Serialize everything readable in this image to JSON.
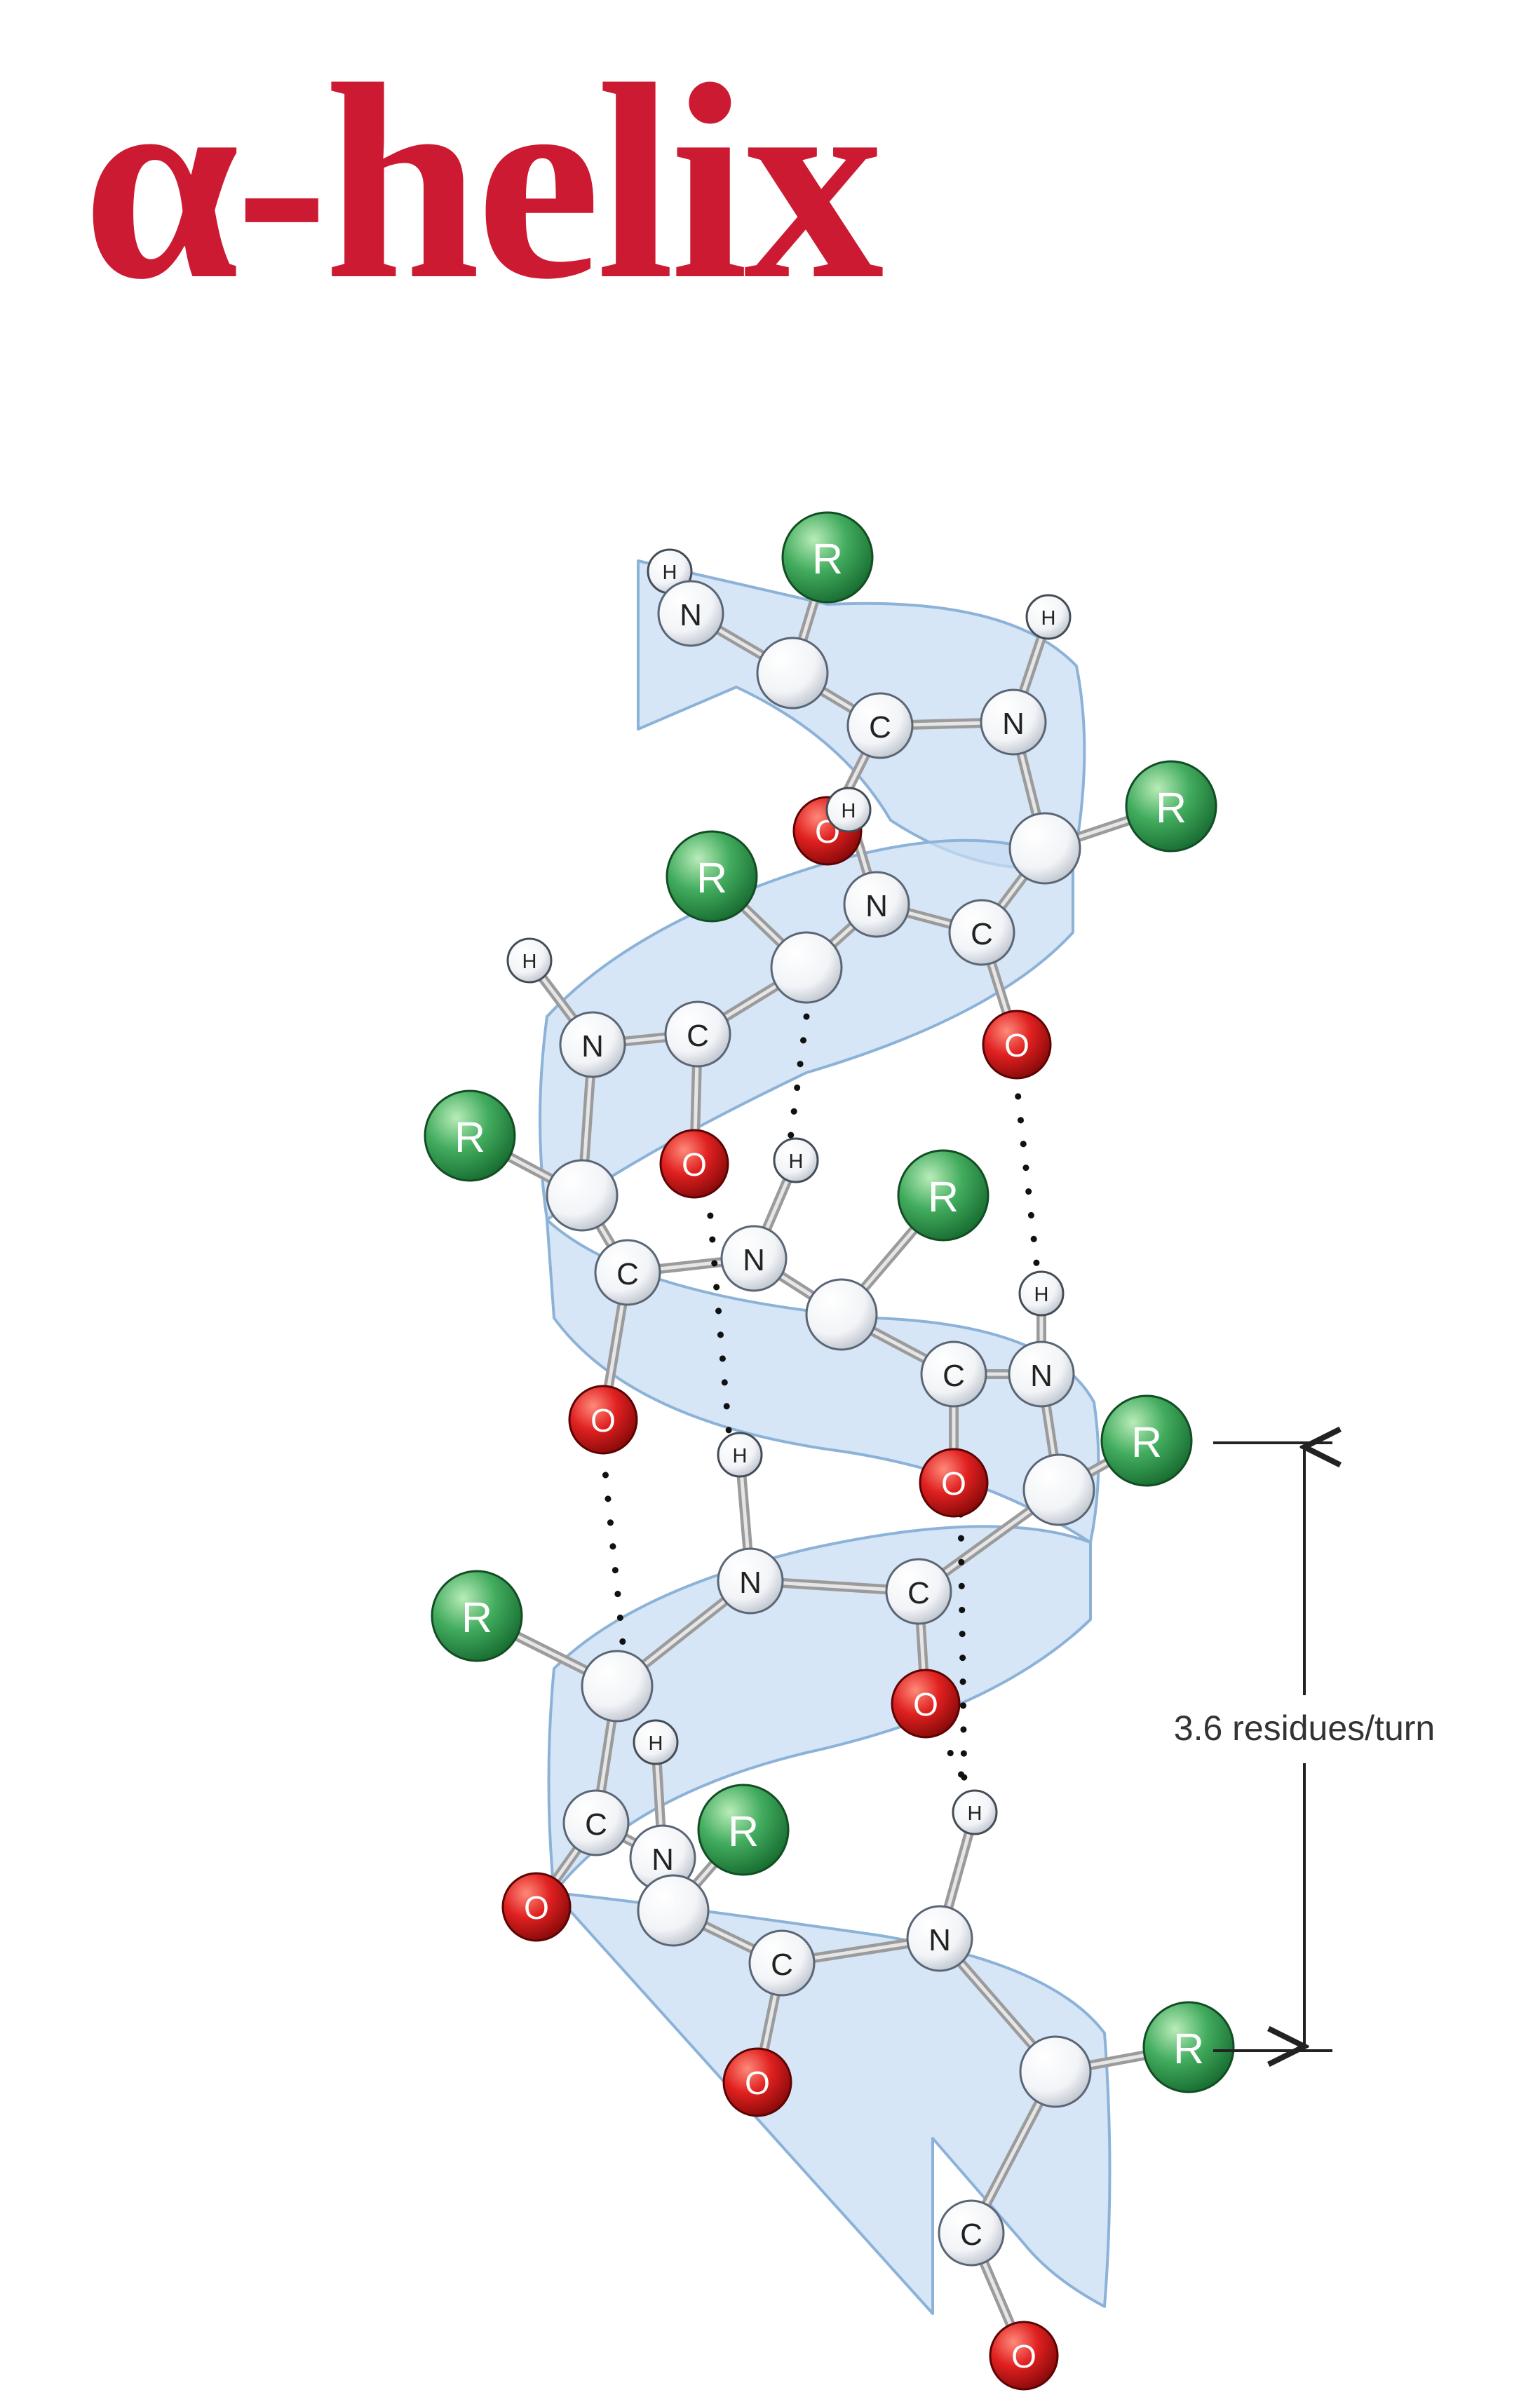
{
  "title": "α-helix",
  "colors": {
    "title": "#cc1a33",
    "ribbon_fill": "#c6ddf2",
    "ribbon_stroke": "#8cb2d8",
    "nitrogen_atom": "#ffffff",
    "carbon_atom": "#ffffff",
    "hydrogen_atom": "#f4f4f4",
    "oxygen_atom": "#d51818",
    "r_group": "#3aa45a",
    "bond": "#9b9b9b",
    "hbond_dots": "#111111",
    "annotation_line": "#222222"
  },
  "atom_labels": {
    "nitrogen": "N",
    "carbon": "C",
    "oxygen": "O",
    "hydrogen": "H",
    "side_chain": "R"
  },
  "annotation": {
    "label": "3.6 residues/turn"
  }
}
